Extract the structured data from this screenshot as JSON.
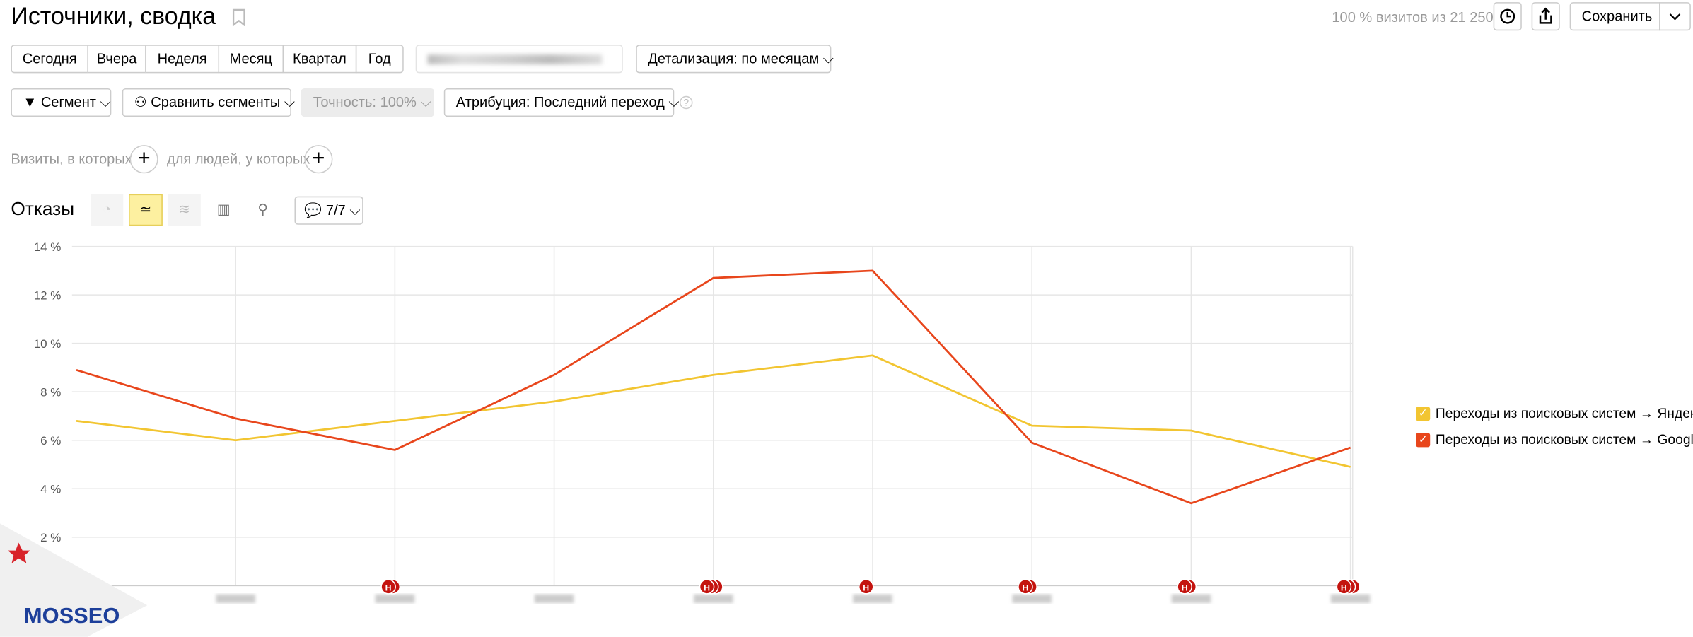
{
  "header": {
    "title": "Источники, сводка",
    "visits_info": "100 % визитов из 21 250",
    "save": "Сохранить"
  },
  "periods": [
    "Сегодня",
    "Вчера",
    "Неделя",
    "Месяц",
    "Квартал",
    "Год"
  ],
  "detail": "Детализация: по месяцам",
  "filters": {
    "segment": "Сегмент",
    "compare": "Сравнить сегменты",
    "accuracy": "Точность: 100%",
    "attribution": "Атрибуция: Последний переход"
  },
  "conditions": {
    "visits": "Визиты, в которых",
    "people": "для людей, у которых"
  },
  "metric": {
    "title": "Отказы",
    "notes": "7/7"
  },
  "holiday_label": "Н",
  "logo": "MOSSEO",
  "chart_data": {
    "type": "line",
    "categories": [
      null,
      null,
      null,
      null,
      null,
      null,
      null,
      null,
      null
    ],
    "series": [
      {
        "name": "Переходы из поисковых систем → Яндекс",
        "color": "#f2c531",
        "values": [
          6.8,
          6.0,
          6.8,
          7.6,
          8.7,
          9.5,
          6.6,
          6.4,
          4.9
        ]
      },
      {
        "name": "Переходы из поисковых систем → Google",
        "color": "#e8461c",
        "values": [
          8.9,
          6.9,
          5.6,
          8.7,
          12.7,
          13.0,
          5.9,
          3.4,
          5.7
        ]
      }
    ],
    "ylim": [
      0,
      14
    ],
    "yticks": [
      {
        "value": 2,
        "label": "2 %"
      },
      {
        "value": 4,
        "label": "4 %"
      },
      {
        "value": 6,
        "label": "6 %"
      },
      {
        "value": 8,
        "label": "8 %"
      },
      {
        "value": 10,
        "label": "10 %"
      },
      {
        "value": 12,
        "label": "12 %"
      },
      {
        "value": 14,
        "label": "14 %"
      }
    ],
    "grid": true,
    "legend": "right"
  }
}
